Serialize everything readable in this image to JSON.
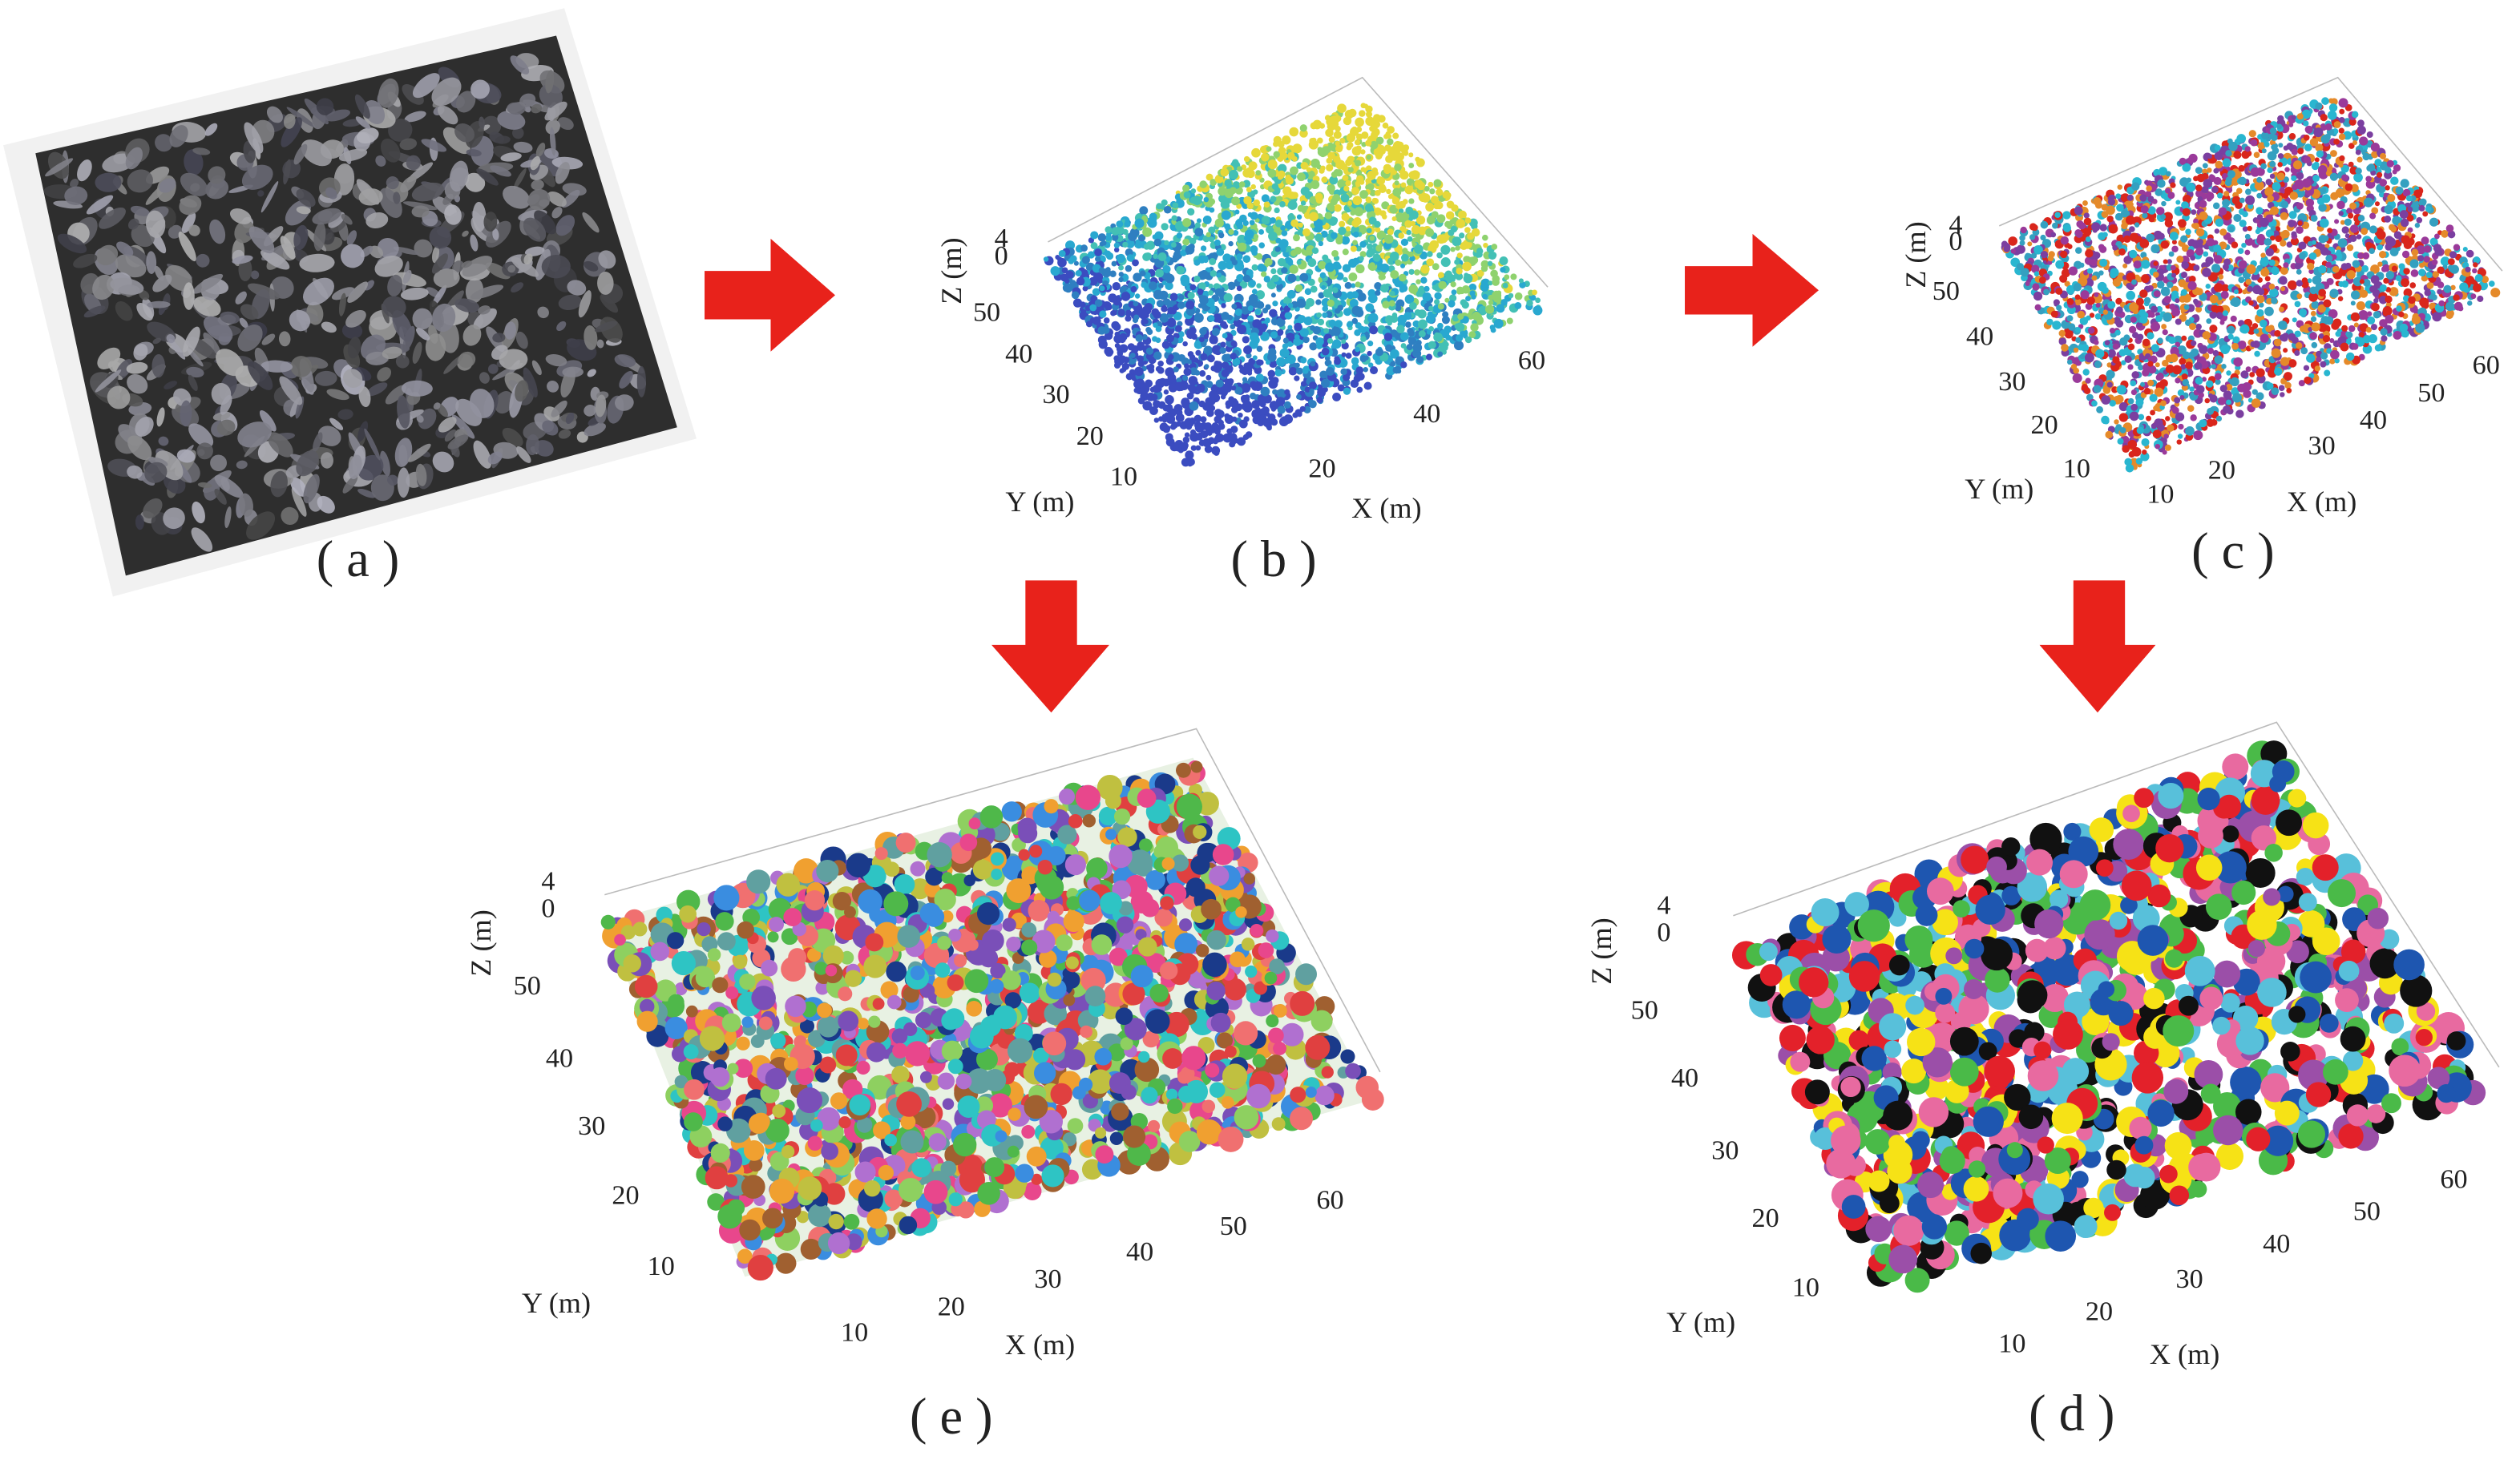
{
  "panels": {
    "a": {
      "caption": "( a )"
    },
    "b": {
      "caption": "( b )",
      "axes": {
        "z_label": "Z (m)",
        "y_label": "Y (m)",
        "x_label": "X (m)",
        "z_ticks": [
          4,
          0
        ],
        "y_ticks": [
          50,
          40,
          30,
          20,
          10
        ],
        "x_ticks": [
          20,
          40,
          60
        ]
      }
    },
    "c": {
      "caption": "( c )",
      "axes": {
        "z_label": "Z (m)",
        "y_label": "Y (m)",
        "x_label": "X (m)",
        "z_ticks": [
          4,
          0
        ],
        "y_ticks": [
          50,
          40,
          30,
          20,
          10
        ],
        "x_ticks": [
          10,
          20,
          30,
          40,
          50,
          60
        ]
      }
    },
    "e": {
      "caption": "( e )",
      "axes": {
        "z_label": "Z (m)",
        "y_label": "Y (m)",
        "x_label": "X (m)",
        "z_ticks": [
          4,
          0
        ],
        "y_ticks": [
          50,
          40,
          30,
          20,
          10
        ],
        "x_ticks": [
          10,
          20,
          30,
          40,
          50,
          60
        ]
      }
    },
    "d": {
      "caption": "( d )",
      "axes": {
        "z_label": "Z (m)",
        "y_label": "Y (m)",
        "x_label": "X (m)",
        "z_ticks": [
          4,
          0
        ],
        "y_ticks": [
          50,
          40,
          30,
          20,
          10
        ],
        "x_ticks": [
          10,
          20,
          30,
          40,
          50,
          60
        ]
      }
    }
  }
}
